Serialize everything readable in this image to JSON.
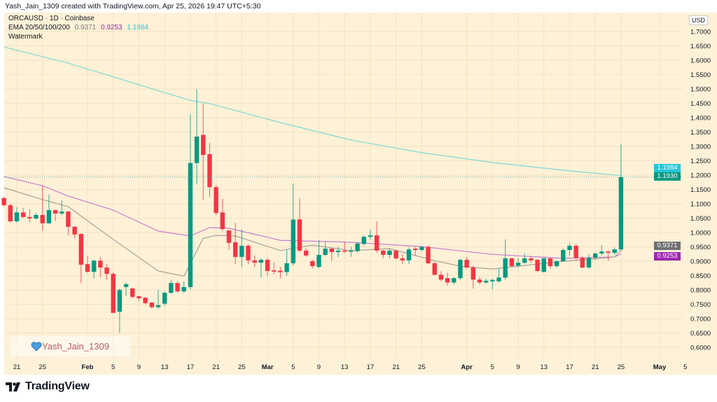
{
  "header": {
    "text": "Yash_Jain_1309 created with TradingView.com, Apr 25, 2026 19:47 UTC+5:30"
  },
  "legend": {
    "symbol": "ORCAUSD · 1D · Coinbase",
    "indicator": "EMA 20/50/100/200",
    "ema_values": [
      "0.9371",
      "0.9253",
      "1.1984"
    ],
    "watermark": "Watermark"
  },
  "watermark_box": {
    "text": "Yash_Jain_1309",
    "icon": "heart-icon"
  },
  "currency": "USD",
  "brand": {
    "name": "TradingView",
    "icon": "tradingview-logo-icon"
  },
  "colors": {
    "background": "#fdf1d7",
    "up": "#089981",
    "down": "#f23645",
    "ema_fast": "#a8a39a",
    "ema_mid": "#c77dd0",
    "ema_slow": "#7fd9d4",
    "label_ema_slow": "#26c6da",
    "label_last": "#089981",
    "label_ema_fast": "#707070",
    "label_ema_mid": "#9c27b0"
  },
  "price_labels": [
    {
      "value": "1.1984",
      "price": 1.1984,
      "color_key": "label_ema_slow"
    },
    {
      "value": "1.1930",
      "price": 1.193,
      "color_key": "label_last"
    },
    {
      "value": "0.9371",
      "price": 0.9371,
      "color_key": "label_ema_fast"
    },
    {
      "value": "0.9253",
      "price": 0.9253,
      "color_key": "label_ema_mid"
    }
  ],
  "chart_data": {
    "type": "candlestick",
    "symbol": "ORCAUSD",
    "interval": "1D",
    "ylim": [
      0.575,
      1.76
    ],
    "grid": true,
    "last_price": 1.193,
    "y_ticks": [
      "1.7000",
      "1.6500",
      "1.6000",
      "1.5500",
      "1.5000",
      "1.4500",
      "1.4000",
      "1.3500",
      "1.3000",
      "1.2500",
      "1.2000",
      "1.1500",
      "1.1000",
      "1.0500",
      "1.0000",
      "0.9500",
      "0.9000",
      "0.8500",
      "0.8000",
      "0.7500",
      "0.7000",
      "0.6500",
      "0.6000"
    ],
    "x_ticks": [
      {
        "date": "2026-01-21",
        "label": "21"
      },
      {
        "date": "2026-01-25",
        "label": "25"
      },
      {
        "date": "2026-02-01",
        "label": "Feb"
      },
      {
        "date": "2026-02-05",
        "label": "5"
      },
      {
        "date": "2026-02-09",
        "label": "9"
      },
      {
        "date": "2026-02-13",
        "label": "13"
      },
      {
        "date": "2026-02-17",
        "label": "17"
      },
      {
        "date": "2026-02-21",
        "label": "21"
      },
      {
        "date": "2026-02-25",
        "label": "25"
      },
      {
        "date": "2026-03-01",
        "label": "Mar"
      },
      {
        "date": "2026-03-05",
        "label": "5"
      },
      {
        "date": "2026-03-09",
        "label": "9"
      },
      {
        "date": "2026-03-13",
        "label": "13"
      },
      {
        "date": "2026-03-17",
        "label": "17"
      },
      {
        "date": "2026-03-21",
        "label": "21"
      },
      {
        "date": "2026-03-25",
        "label": "25"
      },
      {
        "date": "2026-04-01",
        "label": "Apr"
      },
      {
        "date": "2026-04-05",
        "label": "5"
      },
      {
        "date": "2026-04-09",
        "label": "9"
      },
      {
        "date": "2026-04-13",
        "label": "13"
      },
      {
        "date": "2026-04-17",
        "label": "17"
      },
      {
        "date": "2026-04-21",
        "label": "21"
      },
      {
        "date": "2026-04-25",
        "label": "25"
      },
      {
        "date": "2026-05-01",
        "label": "May"
      },
      {
        "date": "2026-05-05",
        "label": "5"
      }
    ],
    "candles_format": [
      "date",
      "open",
      "high",
      "low",
      "close"
    ],
    "candles": [
      [
        "2026-01-19",
        1.12,
        1.125,
        1.09,
        1.095
      ],
      [
        "2026-01-20",
        1.095,
        1.1,
        1.035,
        1.039
      ],
      [
        "2026-01-21",
        1.039,
        1.088,
        1.035,
        1.07
      ],
      [
        "2026-01-22",
        1.07,
        1.085,
        1.05,
        1.054
      ],
      [
        "2026-01-23",
        1.054,
        1.08,
        1.035,
        1.049
      ],
      [
        "2026-01-24",
        1.049,
        1.068,
        1.045,
        1.061
      ],
      [
        "2026-01-25",
        1.061,
        1.163,
        1.005,
        1.032
      ],
      [
        "2026-01-26",
        1.032,
        1.132,
        1.03,
        1.078
      ],
      [
        "2026-01-27",
        1.078,
        1.08,
        1.04,
        1.066
      ],
      [
        "2026-01-28",
        1.066,
        1.112,
        1.06,
        1.073
      ],
      [
        "2026-01-29",
        1.073,
        1.075,
        0.99,
        1.02
      ],
      [
        "2026-01-30",
        1.02,
        1.022,
        0.98,
        0.993
      ],
      [
        "2026-01-31",
        0.995,
        0.998,
        0.824,
        0.888
      ],
      [
        "2026-02-01",
        0.89,
        0.92,
        0.86,
        0.863
      ],
      [
        "2026-02-02",
        0.863,
        0.905,
        0.84,
        0.902
      ],
      [
        "2026-02-03",
        0.902,
        0.915,
        0.845,
        0.878
      ],
      [
        "2026-02-04",
        0.878,
        0.89,
        0.835,
        0.856
      ],
      [
        "2026-02-05",
        0.856,
        0.862,
        0.72,
        0.72
      ],
      [
        "2026-02-06",
        0.724,
        0.805,
        0.651,
        0.8
      ],
      [
        "2026-02-07",
        0.81,
        0.825,
        0.78,
        0.82
      ],
      [
        "2026-02-08",
        0.805,
        0.808,
        0.77,
        0.776
      ],
      [
        "2026-02-09",
        0.778,
        0.78,
        0.76,
        0.771
      ],
      [
        "2026-02-10",
        0.773,
        0.776,
        0.75,
        0.754
      ],
      [
        "2026-02-11",
        0.756,
        0.758,
        0.735,
        0.74
      ],
      [
        "2026-02-12",
        0.74,
        0.8,
        0.735,
        0.747
      ],
      [
        "2026-02-13",
        0.752,
        0.795,
        0.745,
        0.79
      ],
      [
        "2026-02-14",
        0.79,
        0.835,
        0.787,
        0.824
      ],
      [
        "2026-02-15",
        0.824,
        0.83,
        0.79,
        0.795
      ],
      [
        "2026-02-16",
        0.795,
        0.83,
        0.79,
        0.81
      ],
      [
        "2026-02-17",
        0.81,
        1.412,
        0.8,
        1.242
      ],
      [
        "2026-02-18",
        1.242,
        1.5,
        1.168,
        1.334
      ],
      [
        "2026-02-19",
        1.34,
        1.449,
        1.112,
        1.27
      ],
      [
        "2026-02-20",
        1.273,
        1.312,
        1.124,
        1.158
      ],
      [
        "2026-02-21",
        1.158,
        1.165,
        1.06,
        1.068
      ],
      [
        "2026-02-22",
        1.07,
        1.117,
        1.005,
        1.012
      ],
      [
        "2026-02-23",
        1.007,
        1.01,
        0.94,
        0.964
      ],
      [
        "2026-02-24",
        0.966,
        1.034,
        0.89,
        0.915
      ],
      [
        "2026-02-25",
        0.915,
        1.01,
        0.88,
        0.954
      ],
      [
        "2026-02-26",
        0.954,
        0.96,
        0.89,
        0.903
      ],
      [
        "2026-02-27",
        0.903,
        0.92,
        0.88,
        0.895
      ],
      [
        "2026-02-28",
        0.895,
        0.91,
        0.844,
        0.905
      ],
      [
        "2026-03-01",
        0.905,
        0.91,
        0.85,
        0.866
      ],
      [
        "2026-03-02",
        0.868,
        0.895,
        0.855,
        0.864
      ],
      [
        "2026-03-03",
        0.867,
        0.88,
        0.84,
        0.862
      ],
      [
        "2026-03-04",
        0.862,
        0.94,
        0.85,
        0.893
      ],
      [
        "2026-03-05",
        0.893,
        1.17,
        0.885,
        1.045
      ],
      [
        "2026-03-06",
        1.046,
        1.12,
        0.93,
        0.937
      ],
      [
        "2026-03-07",
        0.937,
        0.945,
        0.915,
        0.92
      ],
      [
        "2026-03-08",
        0.9,
        0.905,
        0.875,
        0.883
      ],
      [
        "2026-03-09",
        0.88,
        0.973,
        0.875,
        0.922
      ],
      [
        "2026-03-10",
        0.922,
        0.966,
        0.918,
        0.944
      ],
      [
        "2026-03-11",
        0.944,
        0.948,
        0.902,
        0.932
      ],
      [
        "2026-03-12",
        0.932,
        0.95,
        0.915,
        0.937
      ],
      [
        "2026-03-13",
        0.937,
        0.968,
        0.93,
        0.933
      ],
      [
        "2026-03-14",
        0.933,
        0.95,
        0.915,
        0.937
      ],
      [
        "2026-03-15",
        0.935,
        0.965,
        0.93,
        0.962
      ],
      [
        "2026-03-16",
        0.96,
        0.99,
        0.955,
        0.985
      ],
      [
        "2026-03-17",
        0.985,
        1.01,
        0.975,
        0.99
      ],
      [
        "2026-03-18",
        0.99,
        1.039,
        0.93,
        0.937
      ],
      [
        "2026-03-19",
        0.937,
        0.94,
        0.91,
        0.922
      ],
      [
        "2026-03-20",
        0.922,
        0.945,
        0.91,
        0.937
      ],
      [
        "2026-03-21",
        0.937,
        0.94,
        0.905,
        0.91
      ],
      [
        "2026-03-22",
        0.91,
        0.925,
        0.89,
        0.903
      ],
      [
        "2026-03-23",
        0.903,
        0.948,
        0.89,
        0.941
      ],
      [
        "2026-03-24",
        0.944,
        0.95,
        0.92,
        0.939
      ],
      [
        "2026-03-25",
        0.939,
        0.953,
        0.935,
        0.95
      ],
      [
        "2026-03-26",
        0.95,
        0.955,
        0.89,
        0.893
      ],
      [
        "2026-03-27",
        0.893,
        0.898,
        0.85,
        0.853
      ],
      [
        "2026-03-28",
        0.853,
        0.865,
        0.83,
        0.836
      ],
      [
        "2026-03-29",
        0.841,
        0.86,
        0.815,
        0.826
      ],
      [
        "2026-03-30",
        0.826,
        0.845,
        0.82,
        0.841
      ],
      [
        "2026-03-31",
        0.841,
        0.908,
        0.835,
        0.905
      ],
      [
        "2026-04-01",
        0.905,
        0.915,
        0.875,
        0.878
      ],
      [
        "2026-04-02",
        0.878,
        0.885,
        0.805,
        0.836
      ],
      [
        "2026-04-03",
        0.836,
        0.845,
        0.82,
        0.826
      ],
      [
        "2026-04-04",
        0.826,
        0.84,
        0.822,
        0.832
      ],
      [
        "2026-04-05",
        0.83,
        0.838,
        0.802,
        0.835
      ],
      [
        "2026-04-06",
        0.83,
        0.875,
        0.826,
        0.843
      ],
      [
        "2026-04-07",
        0.843,
        0.976,
        0.835,
        0.91
      ],
      [
        "2026-04-08",
        0.91,
        0.912,
        0.88,
        0.883
      ],
      [
        "2026-04-09",
        0.885,
        0.91,
        0.878,
        0.895
      ],
      [
        "2026-04-10",
        0.895,
        0.927,
        0.89,
        0.91
      ],
      [
        "2026-04-11",
        0.91,
        0.918,
        0.895,
        0.903
      ],
      [
        "2026-04-12",
        0.905,
        0.908,
        0.862,
        0.866
      ],
      [
        "2026-04-13",
        0.863,
        0.912,
        0.86,
        0.91
      ],
      [
        "2026-04-14",
        0.91,
        0.912,
        0.875,
        0.883
      ],
      [
        "2026-04-15",
        0.883,
        0.905,
        0.878,
        0.9
      ],
      [
        "2026-04-16",
        0.9,
        0.945,
        0.898,
        0.939
      ],
      [
        "2026-04-17",
        0.939,
        0.963,
        0.92,
        0.954
      ],
      [
        "2026-04-18",
        0.954,
        0.96,
        0.905,
        0.912
      ],
      [
        "2026-04-19",
        0.912,
        0.918,
        0.875,
        0.878
      ],
      [
        "2026-04-20",
        0.878,
        0.925,
        0.875,
        0.912
      ],
      [
        "2026-04-21",
        0.912,
        0.93,
        0.905,
        0.927
      ],
      [
        "2026-04-22",
        0.927,
        0.956,
        0.92,
        0.934
      ],
      [
        "2026-04-23",
        0.934,
        0.936,
        0.902,
        0.93
      ],
      [
        "2026-04-24",
        0.929,
        0.948,
        0.922,
        0.941
      ],
      [
        "2026-04-25",
        0.941,
        1.307,
        0.935,
        1.193
      ]
    ],
    "series": [
      {
        "color_key": "ema_slow",
        "points": [
          [
            "2026-01-19",
            1.646
          ],
          [
            "2026-01-29",
            1.59
          ],
          [
            "2026-02-17",
            1.46
          ],
          [
            "2026-02-20",
            1.449
          ],
          [
            "2026-03-03",
            1.383
          ],
          [
            "2026-03-14",
            1.322
          ],
          [
            "2026-03-25",
            1.278
          ],
          [
            "2026-04-05",
            1.244
          ],
          [
            "2026-04-16",
            1.217
          ],
          [
            "2026-04-25",
            1.198
          ]
        ]
      },
      {
        "color_key": "ema_mid",
        "points": [
          [
            "2026-01-19",
            1.195
          ],
          [
            "2026-01-25",
            1.163
          ],
          [
            "2026-01-29",
            1.127
          ],
          [
            "2026-02-05",
            1.078
          ],
          [
            "2026-02-12",
            1.005
          ],
          [
            "2026-02-17",
            0.988
          ],
          [
            "2026-02-20",
            1.017
          ],
          [
            "2026-02-23",
            1.015
          ],
          [
            "2026-03-03",
            0.973
          ],
          [
            "2026-03-14",
            0.966
          ],
          [
            "2026-03-25",
            0.951
          ],
          [
            "2026-04-05",
            0.924
          ],
          [
            "2026-04-16",
            0.91
          ],
          [
            "2026-04-24",
            0.915
          ],
          [
            "2026-04-25",
            0.925
          ]
        ]
      },
      {
        "color_key": "ema_fast",
        "points": [
          [
            "2026-01-19",
            1.156
          ],
          [
            "2026-01-25",
            1.115
          ],
          [
            "2026-01-29",
            1.09
          ],
          [
            "2026-02-05",
            0.976
          ],
          [
            "2026-02-12",
            0.866
          ],
          [
            "2026-02-16",
            0.848
          ],
          [
            "2026-02-19",
            0.98
          ],
          [
            "2026-02-21",
            0.99
          ],
          [
            "2026-02-24",
            0.988
          ],
          [
            "2026-03-03",
            0.937
          ],
          [
            "2026-03-08",
            0.956
          ],
          [
            "2026-03-14",
            0.937
          ],
          [
            "2026-03-20",
            0.944
          ],
          [
            "2026-03-27",
            0.902
          ],
          [
            "2026-03-31",
            0.883
          ],
          [
            "2026-04-05",
            0.873
          ],
          [
            "2026-04-10",
            0.885
          ],
          [
            "2026-04-16",
            0.9
          ],
          [
            "2026-04-22",
            0.91
          ],
          [
            "2026-04-24",
            0.915
          ],
          [
            "2026-04-25",
            0.937
          ]
        ]
      }
    ]
  }
}
